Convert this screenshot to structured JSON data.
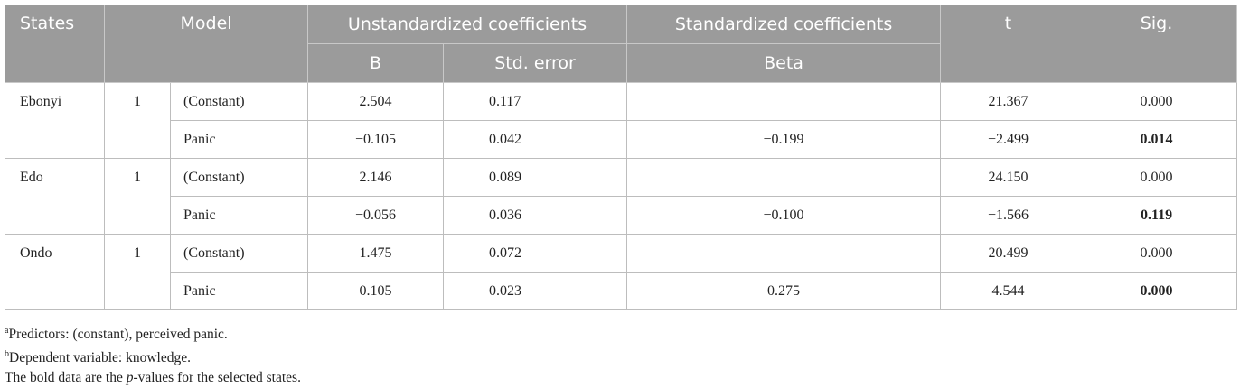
{
  "table": {
    "header": {
      "states": "States",
      "model": "Model",
      "unstandardized": "Unstandardized coefficients",
      "standardized": "Standardized coefficients",
      "t": "t",
      "sig": "Sig.",
      "b": "B",
      "std_error": "Std. error",
      "beta": "Beta"
    },
    "groups": [
      {
        "state": "Ebonyi",
        "model": "1",
        "rows": [
          {
            "term": "(Constant)",
            "b": "2.504",
            "se": "0.117",
            "t": "21.367",
            "sig": "0.000"
          },
          {
            "term": "Panic",
            "b": "−0.105",
            "se": "0.042",
            "beta": "−0.199",
            "t": "−2.499",
            "sig": "0.014",
            "bold": true
          }
        ]
      },
      {
        "state": "Edo",
        "model": "1",
        "rows": [
          {
            "term": "(Constant)",
            "b": "2.146",
            "se": "0.089",
            "t": "24.150",
            "sig": "0.000"
          },
          {
            "term": "Panic",
            "b": "−0.056",
            "se": "0.036",
            "beta": "−0.100",
            "t": "−1.566",
            "sig": "0.119",
            "bold": true
          }
        ]
      },
      {
        "state": "Ondo",
        "model": "1",
        "rows": [
          {
            "term": "(Constant)",
            "b": "1.475",
            "se": "0.072",
            "t": "20.499",
            "sig": "0.000"
          },
          {
            "term": "Panic",
            "b": "0.105",
            "se": "0.023",
            "beta": "0.275",
            "t": "4.544",
            "sig": "0.000",
            "bold": true
          }
        ]
      }
    ]
  },
  "footnotes": {
    "a": {
      "marker": "a",
      "text": "Predictors: (constant), perceived panic."
    },
    "b": {
      "marker": "b",
      "text": "Dependent variable: knowledge."
    },
    "note": {
      "before": "The bold data are the ",
      "italic": "p",
      "after": "-values for the selected states."
    }
  }
}
